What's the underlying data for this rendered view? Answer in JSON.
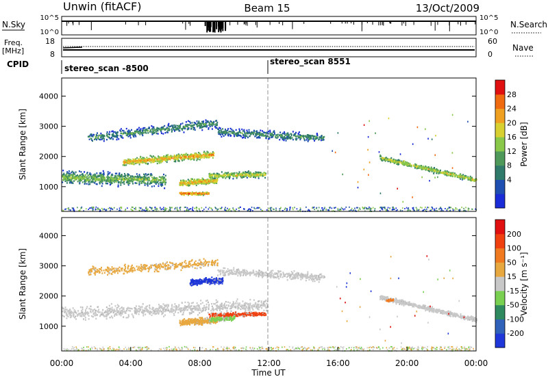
{
  "header": {
    "title": "Unwin (fitACF)",
    "beam": "Beam 15",
    "date": "13/Oct/2009"
  },
  "aux": {
    "nsky_label": "N.Sky",
    "nsky_ticks": [
      "10^5",
      "10^0"
    ],
    "nsearch_label": "N.Search",
    "nsearch_ticks": [
      "10^5",
      "10^0"
    ],
    "freq_label": "Freq.",
    "freq_unit": "[MHz]",
    "freq_ticks": [
      "18",
      "8"
    ],
    "nave_label": "Nave",
    "nave_ticks": [
      "60",
      "0"
    ],
    "cpid_label": "CPID",
    "cpid_segments": [
      {
        "name": "stereo_scan -8500",
        "start_hour": 0
      },
      {
        "name": "stereo_scan 8551",
        "start_hour": 12
      }
    ]
  },
  "chart_data": [
    {
      "type": "heatmap",
      "panel": "power",
      "ylabel": "Slant Range [km]",
      "ylim": [
        180,
        4600
      ],
      "yticks": [
        1000,
        2000,
        3000,
        4000
      ],
      "colorbar": {
        "label": "Power [dB]",
        "ticks": [
          "28",
          "24",
          "20",
          "16",
          "12",
          "8",
          "4"
        ],
        "colors": [
          "#1a2bd8",
          "#1f4fb0",
          "#2f7a6a",
          "#4f9a5a",
          "#8ac84a",
          "#d8d030",
          "#f0a020",
          "#f06a10",
          "#e01010"
        ]
      },
      "echo_bands": [
        {
          "t0": 0.0,
          "t1": 6.0,
          "r0": 1300,
          "r1": 1200,
          "w": 560,
          "n": 720,
          "level": 4
        },
        {
          "t0": 3.5,
          "t1": 8.8,
          "r0": 1800,
          "r1": 2050,
          "w": 320,
          "n": 560,
          "level": 6
        },
        {
          "t0": 1.5,
          "t1": 9.0,
          "r0": 2600,
          "r1": 3100,
          "w": 420,
          "n": 480,
          "level": 3
        },
        {
          "t0": 6.8,
          "t1": 9.0,
          "r0": 1100,
          "r1": 1200,
          "w": 300,
          "n": 320,
          "level": 6
        },
        {
          "t0": 6.8,
          "t1": 8.5,
          "r0": 760,
          "r1": 760,
          "w": 120,
          "n": 160,
          "level": 7
        },
        {
          "t0": 8.5,
          "t1": 11.8,
          "r0": 1350,
          "r1": 1400,
          "w": 280,
          "n": 300,
          "level": 5
        },
        {
          "t0": 9.0,
          "t1": 15.2,
          "r0": 2800,
          "r1": 2600,
          "w": 380,
          "n": 420,
          "level": 3
        },
        {
          "t0": 18.4,
          "t1": 24.0,
          "r0": 1950,
          "r1": 1200,
          "w": 220,
          "n": 460,
          "level": 5
        }
      ],
      "ground_scatter_band_km": [
        180,
        320
      ]
    },
    {
      "type": "heatmap",
      "panel": "velocity",
      "ylabel": "Slant Range [km]",
      "xlabel": "Time UT",
      "ylim": [
        180,
        4600
      ],
      "yticks": [
        1000,
        2000,
        3000,
        4000
      ],
      "xticks": [
        "00:00",
        "04:00",
        "08:00",
        "12:00",
        "16:00",
        "20:00",
        "00:00"
      ],
      "xlim_hours": [
        0,
        24
      ],
      "colorbar": {
        "label": "Velocity [m s⁻¹]",
        "ticks": [
          "200",
          "100",
          "50",
          "15",
          "-15",
          "-50",
          "-100",
          "-200"
        ],
        "colors": [
          "#1f37d8",
          "#2f62b8",
          "#2f8a60",
          "#7ad050",
          "#c8c8c8",
          "#e8a840",
          "#f07a20",
          "#f04010",
          "#e01010"
        ]
      },
      "echo_bands": [
        {
          "t0": 0.0,
          "t1": 12.0,
          "r0": 1400,
          "r1": 1700,
          "w": 560,
          "n": 800,
          "color": "#c8c8c8"
        },
        {
          "t0": 1.5,
          "t1": 9.0,
          "r0": 2800,
          "r1": 3100,
          "w": 380,
          "n": 360,
          "color": "#e8a840"
        },
        {
          "t0": 9.0,
          "t1": 15.2,
          "r0": 2800,
          "r1": 2600,
          "w": 360,
          "n": 380,
          "color": "#c8c8c8"
        },
        {
          "t0": 7.4,
          "t1": 9.3,
          "r0": 2450,
          "r1": 2500,
          "w": 280,
          "n": 260,
          "color": "#1f37d8"
        },
        {
          "t0": 8.5,
          "t1": 11.8,
          "r0": 1350,
          "r1": 1400,
          "w": 180,
          "n": 260,
          "color": "#f04010"
        },
        {
          "t0": 6.8,
          "t1": 9.0,
          "r0": 1100,
          "r1": 1200,
          "w": 300,
          "n": 300,
          "color": "#e8a840"
        },
        {
          "t0": 8.5,
          "t1": 10.0,
          "r0": 1200,
          "r1": 1250,
          "w": 200,
          "n": 140,
          "color": "#7ad050"
        },
        {
          "t0": 18.4,
          "t1": 24.0,
          "r0": 1950,
          "r1": 1200,
          "w": 220,
          "n": 460,
          "color": "#c8c8c8"
        },
        {
          "t0": 18.7,
          "t1": 19.2,
          "r0": 1850,
          "r1": 1850,
          "w": 100,
          "n": 30,
          "color": "#f07a20"
        }
      ],
      "ground_scatter_band_km": [
        180,
        320
      ]
    }
  ]
}
